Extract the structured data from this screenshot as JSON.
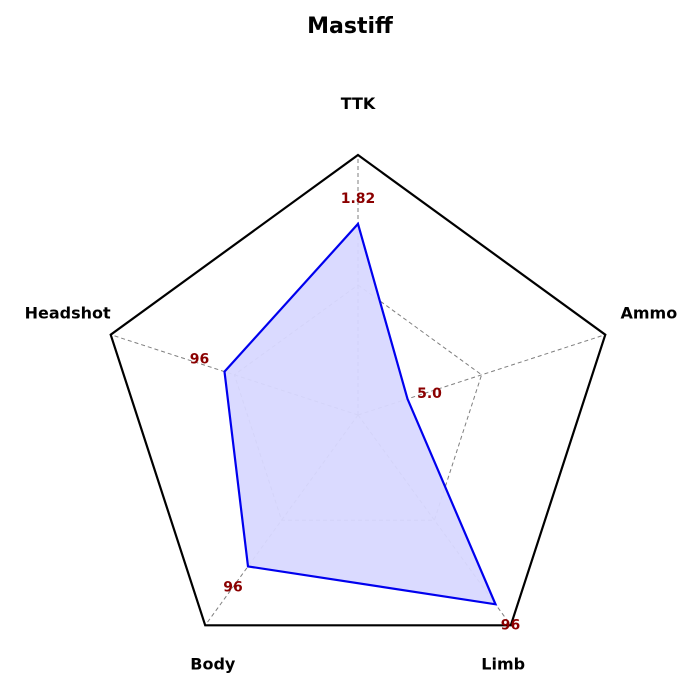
{
  "chart_data": {
    "type": "radar",
    "title": "Mastiff",
    "axes": [
      "TTK",
      "Ammo",
      "Limb",
      "Body",
      "Headshot"
    ],
    "value_labels": [
      "1.82",
      "5.0",
      "96",
      "96",
      "96"
    ],
    "normalized_values": [
      0.735,
      0.2,
      0.9,
      0.72,
      0.54
    ],
    "series": [
      {
        "values": [
          0.735,
          0.2,
          0.9,
          0.72,
          0.54
        ]
      }
    ],
    "rlim": [
      0,
      1
    ],
    "grid": true,
    "colors": {
      "line": "#0000ee",
      "fill": "#d8d8ff",
      "frame": "#000000",
      "grid": "#7f7f7f",
      "value_label": "#8b0000"
    }
  }
}
